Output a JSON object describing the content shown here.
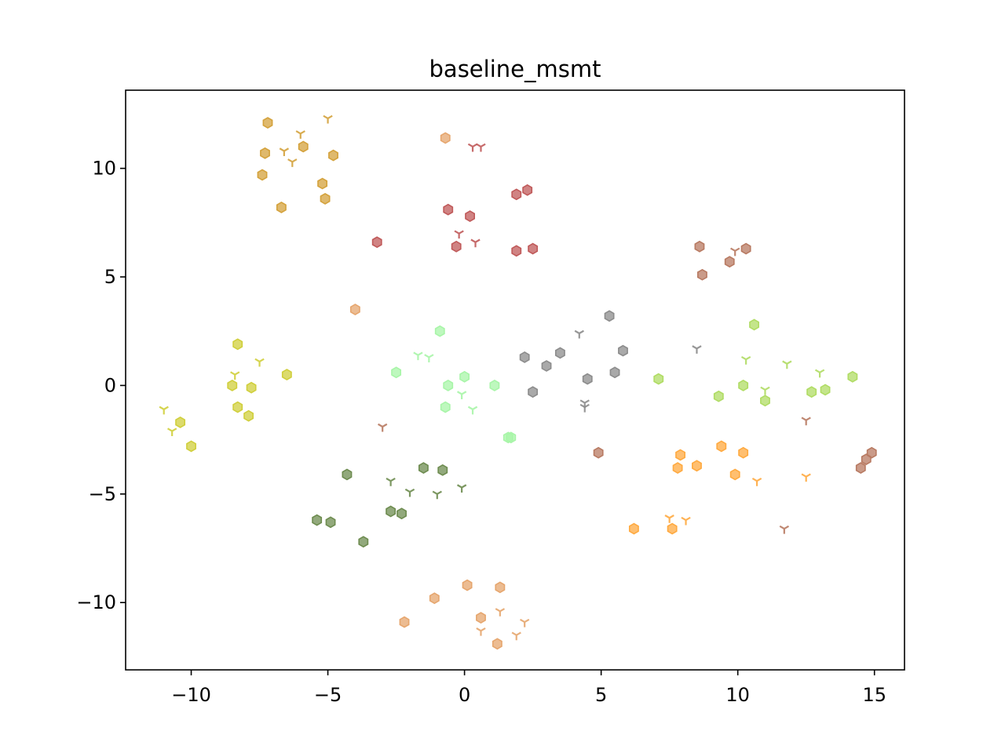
{
  "chart_data": {
    "type": "scatter",
    "title": "baseline_msmt",
    "xlabel": "",
    "ylabel": "",
    "xlim": [
      -12.4,
      16.1
    ],
    "ylim": [
      -13.1,
      13.6
    ],
    "grid": false,
    "legend": "none",
    "xticks": [
      -10,
      -5,
      0,
      5,
      10,
      15
    ],
    "yticks": [
      -10,
      -5,
      0,
      5,
      10
    ],
    "xtick_labels": [
      "−10",
      "−5",
      "0",
      "5",
      "10",
      "15"
    ],
    "ytick_labels": [
      "−10",
      "−5",
      "0",
      "5",
      "10"
    ],
    "marker_types": {
      "hexagon": "filled hexagon",
      "tri": "tri-down"
    },
    "series": [
      {
        "color": "#d4a23c",
        "hexagon": [
          [
            -7.2,
            12.1
          ],
          [
            -7.3,
            10.7
          ],
          [
            -5.9,
            11.0
          ],
          [
            -4.8,
            10.6
          ],
          [
            -7.4,
            9.7
          ],
          [
            -5.2,
            9.3
          ],
          [
            -5.1,
            8.6
          ],
          [
            -6.7,
            8.2
          ]
        ],
        "tri": [
          [
            -5.0,
            12.3
          ],
          [
            -6.0,
            11.6
          ],
          [
            -6.6,
            10.8
          ],
          [
            -6.3,
            10.3
          ]
        ]
      },
      {
        "color": "#c05a5a",
        "hexagon": [
          [
            2.3,
            9.0
          ],
          [
            1.9,
            8.8
          ],
          [
            -0.6,
            8.1
          ],
          [
            0.2,
            7.8
          ],
          [
            -3.2,
            6.6
          ],
          [
            -0.3,
            6.4
          ],
          [
            1.9,
            6.2
          ],
          [
            2.5,
            6.3
          ]
        ],
        "tri": [
          [
            0.3,
            11.0
          ],
          [
            0.6,
            11.0
          ],
          [
            -0.2,
            7.0
          ],
          [
            0.4,
            6.6
          ]
        ]
      },
      {
        "color": "#e6a66e",
        "hexagon": [
          [
            -0.7,
            11.4
          ],
          [
            -4.0,
            3.5
          ],
          [
            0.1,
            -9.2
          ],
          [
            1.3,
            -9.3
          ],
          [
            -1.1,
            -9.8
          ],
          [
            0.6,
            -10.7
          ],
          [
            -2.2,
            -10.9
          ],
          [
            1.2,
            -11.9
          ]
        ],
        "tri": [
          [
            1.3,
            -10.4
          ],
          [
            2.2,
            -10.9
          ],
          [
            0.6,
            -11.3
          ],
          [
            1.9,
            -11.5
          ]
        ]
      },
      {
        "color": "#b87a62",
        "hexagon": [
          [
            8.6,
            6.4
          ],
          [
            10.3,
            6.3
          ],
          [
            9.7,
            5.7
          ],
          [
            8.7,
            5.1
          ],
          [
            4.9,
            -3.1
          ],
          [
            14.9,
            -3.1
          ],
          [
            14.7,
            -3.4
          ],
          [
            14.5,
            -3.8
          ]
        ],
        "tri": [
          [
            9.9,
            6.2
          ],
          [
            -3.0,
            -1.9
          ],
          [
            12.5,
            -1.6
          ],
          [
            11.7,
            -6.6
          ]
        ]
      },
      {
        "color": "#d0cf3c",
        "hexagon": [
          [
            -8.3,
            1.9
          ],
          [
            -6.5,
            0.5
          ],
          [
            -8.5,
            0.0
          ],
          [
            -7.8,
            -0.1
          ],
          [
            -8.3,
            -1.0
          ],
          [
            -7.9,
            -1.4
          ],
          [
            -10.4,
            -1.7
          ],
          [
            -10.0,
            -2.8
          ]
        ],
        "tri": [
          [
            -8.4,
            0.5
          ],
          [
            -7.5,
            1.1
          ],
          [
            -11.0,
            -1.1
          ],
          [
            -10.7,
            -2.1
          ]
        ]
      },
      {
        "color": "#a8f5a8",
        "hexagon": [
          [
            -0.9,
            2.5
          ],
          [
            -2.5,
            0.6
          ],
          [
            0.0,
            0.4
          ],
          [
            -0.6,
            0.0
          ],
          [
            1.1,
            0.0
          ],
          [
            -0.7,
            -1.0
          ],
          [
            1.7,
            -2.4
          ],
          [
            1.6,
            -2.4
          ]
        ],
        "tri": [
          [
            -1.7,
            1.4
          ],
          [
            -1.3,
            1.3
          ],
          [
            -0.1,
            -0.4
          ],
          [
            0.3,
            -1.1
          ]
        ]
      },
      {
        "color": "#8c8c8c",
        "hexagon": [
          [
            5.3,
            3.2
          ],
          [
            5.8,
            1.6
          ],
          [
            3.5,
            1.5
          ],
          [
            2.2,
            1.3
          ],
          [
            3.0,
            0.9
          ],
          [
            5.5,
            0.6
          ],
          [
            4.5,
            0.3
          ],
          [
            2.5,
            -0.3
          ]
        ],
        "tri": [
          [
            4.2,
            2.4
          ],
          [
            8.5,
            1.7
          ],
          [
            4.4,
            -0.8
          ],
          [
            4.4,
            -1.0
          ]
        ]
      },
      {
        "color": "#b0dc64",
        "hexagon": [
          [
            10.6,
            2.8
          ],
          [
            14.2,
            0.4
          ],
          [
            7.1,
            0.3
          ],
          [
            10.2,
            0.0
          ],
          [
            12.7,
            -0.3
          ],
          [
            13.2,
            -0.2
          ],
          [
            9.3,
            -0.5
          ],
          [
            11.0,
            -0.7
          ]
        ],
        "tri": [
          [
            10.3,
            1.2
          ],
          [
            11.8,
            1.0
          ],
          [
            13.0,
            0.6
          ],
          [
            11.0,
            -0.2
          ]
        ]
      },
      {
        "color": "#ffaa40",
        "hexagon": [
          [
            9.4,
            -2.8
          ],
          [
            10.2,
            -3.1
          ],
          [
            7.9,
            -3.2
          ],
          [
            7.8,
            -3.8
          ],
          [
            8.5,
            -3.7
          ],
          [
            9.9,
            -4.1
          ],
          [
            6.2,
            -6.6
          ],
          [
            7.6,
            -6.6
          ]
        ],
        "tri": [
          [
            10.7,
            -4.4
          ],
          [
            12.5,
            -4.2
          ],
          [
            7.5,
            -6.1
          ],
          [
            8.1,
            -6.2
          ]
        ]
      },
      {
        "color": "#6e8c50",
        "hexagon": [
          [
            -4.3,
            -4.1
          ],
          [
            -1.5,
            -3.8
          ],
          [
            -0.8,
            -3.9
          ],
          [
            -5.4,
            -6.2
          ],
          [
            -4.9,
            -6.3
          ],
          [
            -2.7,
            -5.8
          ],
          [
            -2.3,
            -5.9
          ],
          [
            -3.7,
            -7.2
          ]
        ],
        "tri": [
          [
            -2.7,
            -4.4
          ],
          [
            -2.0,
            -4.9
          ],
          [
            -1.0,
            -5.0
          ],
          [
            -0.1,
            -4.7
          ]
        ]
      }
    ]
  }
}
